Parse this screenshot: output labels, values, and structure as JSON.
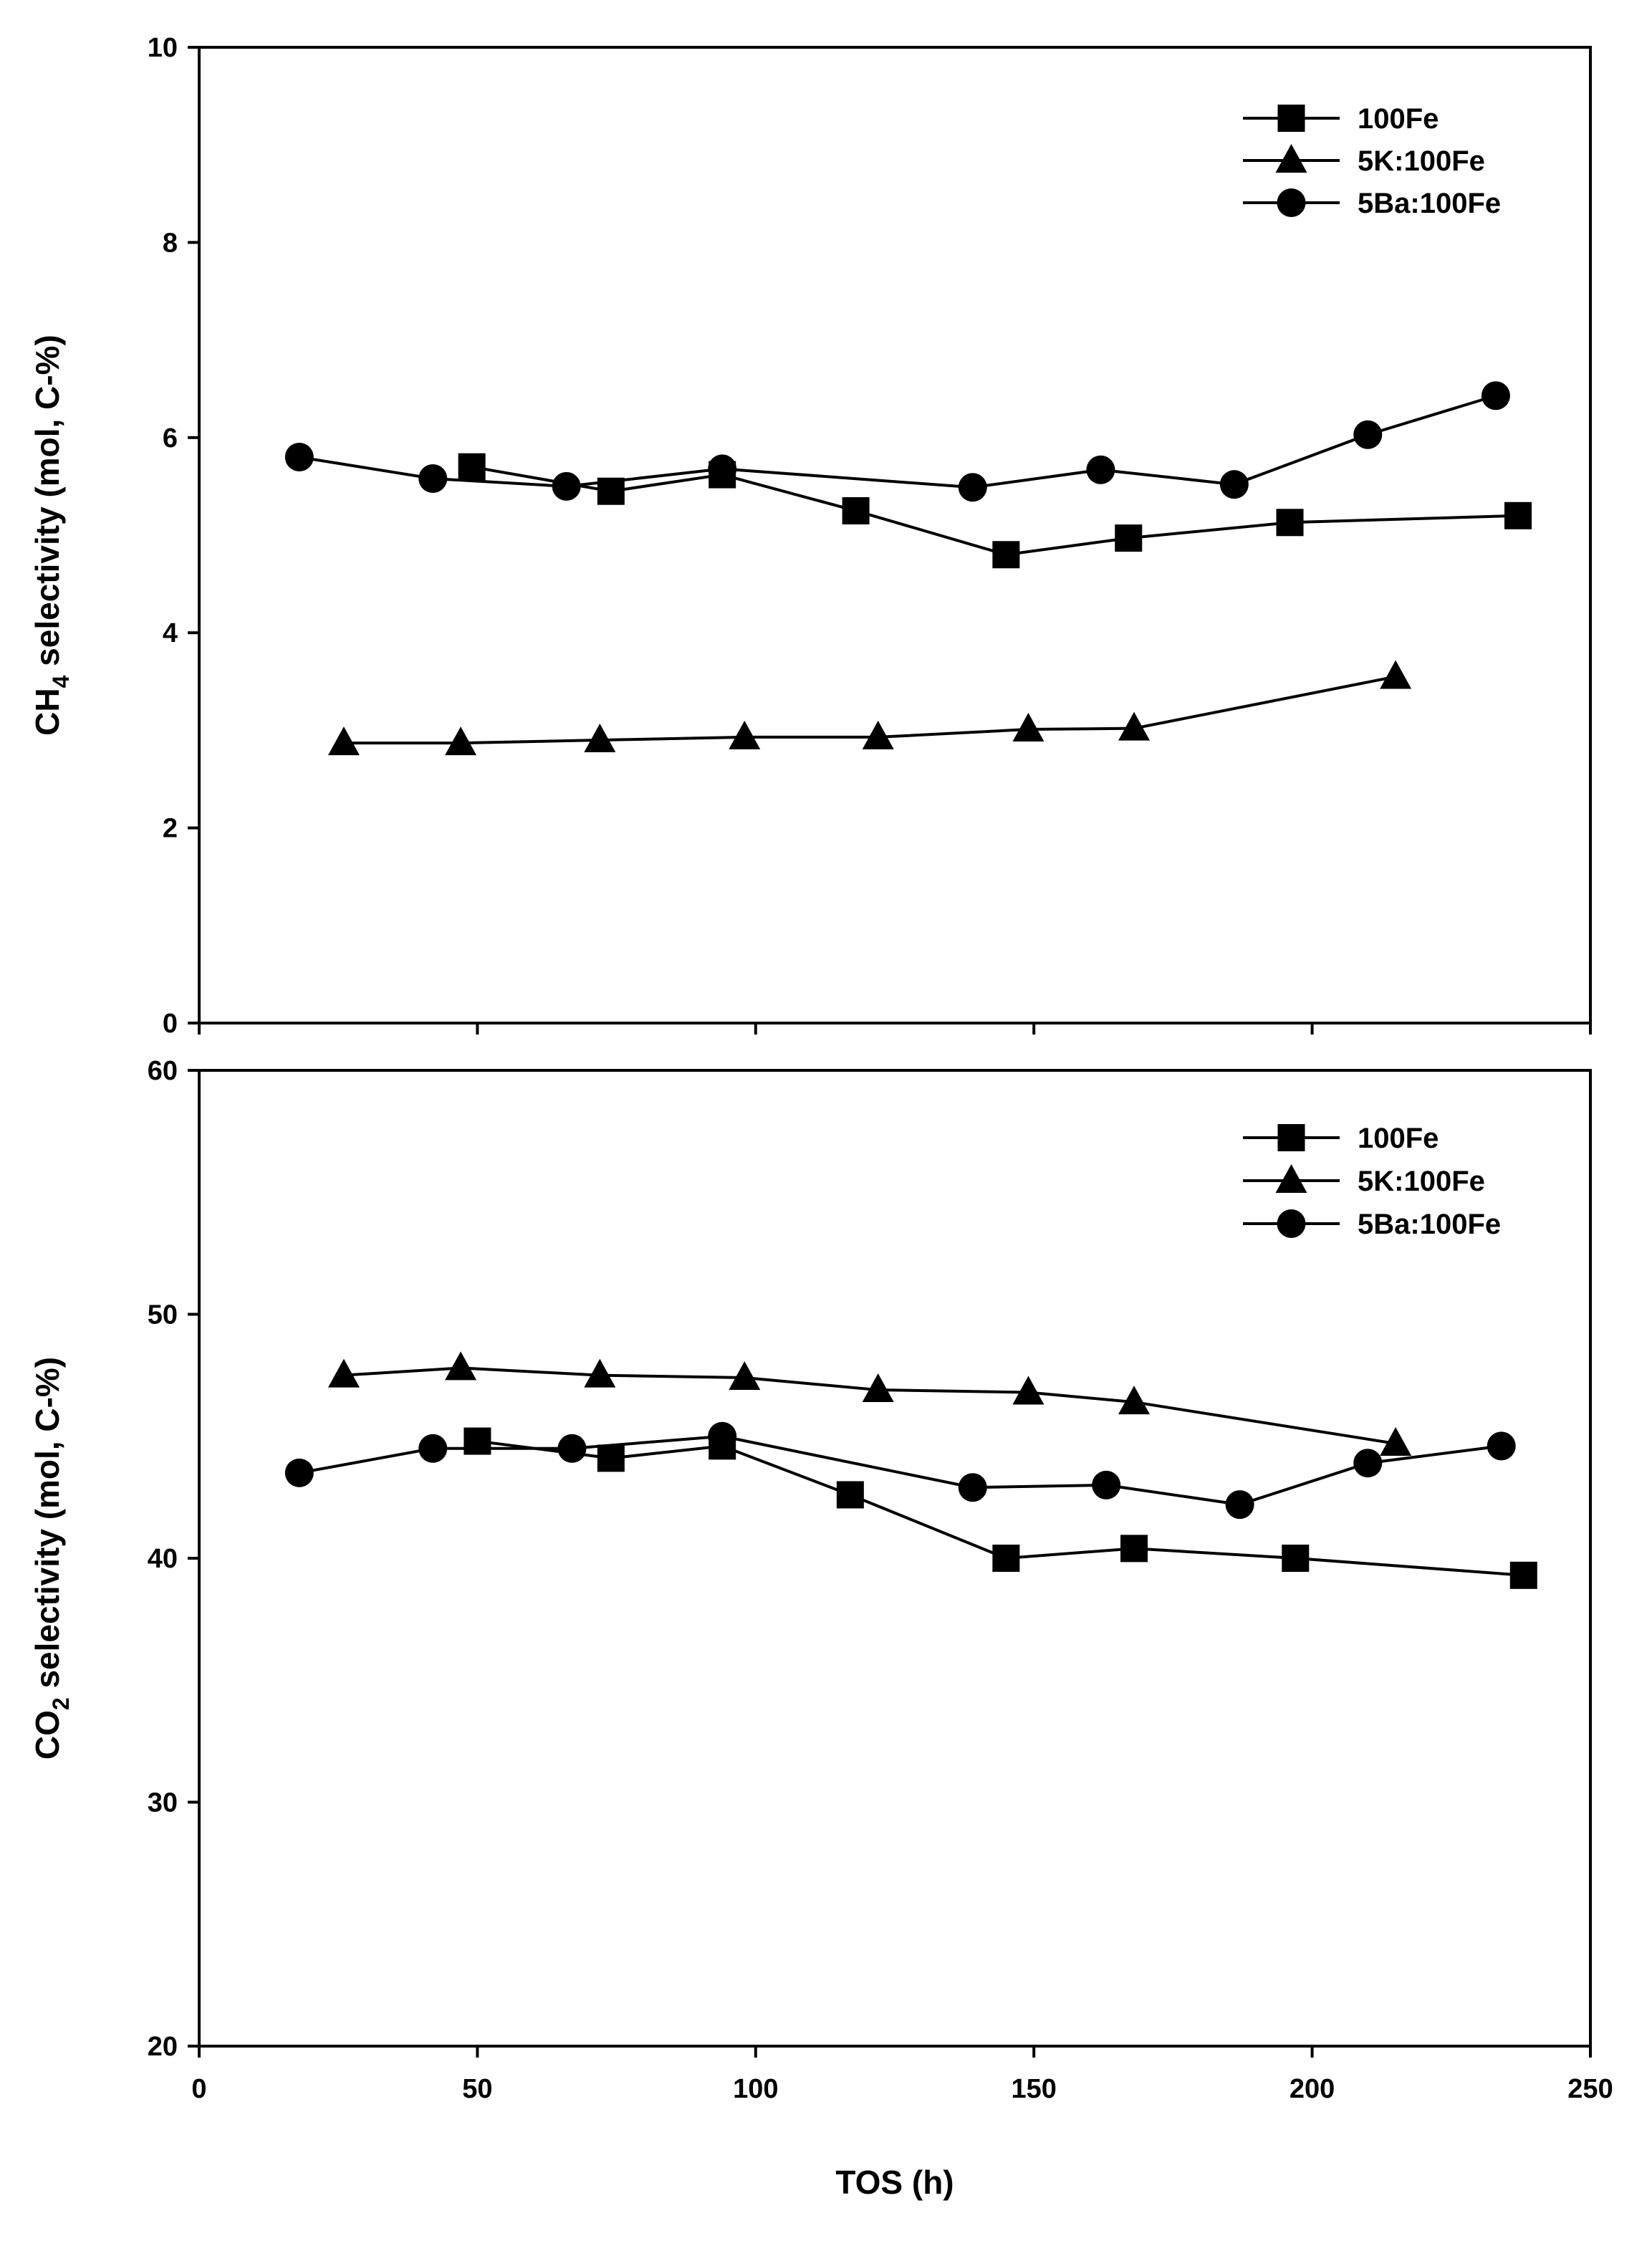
{
  "chart_data": [
    {
      "type": "line",
      "panel": "top",
      "ylabel": "CH4 selectivity (mol, C-%)",
      "ylabel_parts": {
        "pre": "CH",
        "sub": "4",
        "post": " selectivity (mol, C-%)"
      },
      "xlabel": "",
      "xlim": [
        0,
        250
      ],
      "ylim": [
        0,
        10
      ],
      "xticks": [
        0,
        50,
        100,
        150,
        200,
        250
      ],
      "xtick_labels_shown": false,
      "yticks": [
        0,
        2,
        4,
        6,
        8,
        10
      ],
      "legend_position": "top-right",
      "series": [
        {
          "name": "100Fe",
          "marker": "square",
          "x": [
            49,
            74,
            94,
            118,
            145,
            167,
            196,
            237
          ],
          "y": [
            5.7,
            5.45,
            5.62,
            5.25,
            4.8,
            4.97,
            5.13,
            5.2
          ]
        },
        {
          "name": "5K:100Fe",
          "marker": "triangle",
          "x": [
            26,
            47,
            72,
            98,
            122,
            149,
            168,
            215
          ],
          "y": [
            2.87,
            2.87,
            2.9,
            2.93,
            2.93,
            3.01,
            3.02,
            3.55
          ]
        },
        {
          "name": "5Ba:100Fe",
          "marker": "circle",
          "x": [
            18,
            42,
            66,
            94,
            139,
            162,
            186,
            210,
            233
          ],
          "y": [
            5.8,
            5.58,
            5.5,
            5.68,
            5.49,
            5.67,
            5.52,
            6.03,
            6.43
          ]
        }
      ]
    },
    {
      "type": "line",
      "panel": "bottom",
      "ylabel": "CO2 selectivity (mol, C-%)",
      "ylabel_parts": {
        "pre": "CO",
        "sub": "2",
        "post": " selectivity (mol, C-%)"
      },
      "xlabel": "TOS (h)",
      "xlim": [
        0,
        250
      ],
      "ylim": [
        20,
        60
      ],
      "xticks": [
        0,
        50,
        100,
        150,
        200,
        250
      ],
      "xtick_labels_shown": true,
      "yticks": [
        20,
        30,
        40,
        50,
        60
      ],
      "legend_position": "top-right",
      "series": [
        {
          "name": "100Fe",
          "marker": "square",
          "x": [
            50,
            74,
            94,
            117,
            145,
            168,
            197,
            238
          ],
          "y": [
            44.8,
            44.1,
            44.6,
            42.6,
            40.0,
            40.4,
            40.0,
            39.3
          ]
        },
        {
          "name": "5K:100Fe",
          "marker": "triangle",
          "x": [
            26,
            47,
            72,
            98,
            122,
            149,
            168,
            215
          ],
          "y": [
            47.5,
            47.8,
            47.5,
            47.4,
            46.9,
            46.8,
            46.4,
            44.7
          ]
        },
        {
          "name": "5Ba:100Fe",
          "marker": "circle",
          "x": [
            18,
            42,
            67,
            94,
            139,
            163,
            187,
            210,
            234
          ],
          "y": [
            43.5,
            44.5,
            44.5,
            45.0,
            42.9,
            43.0,
            42.2,
            43.9,
            44.6
          ]
        }
      ]
    }
  ]
}
